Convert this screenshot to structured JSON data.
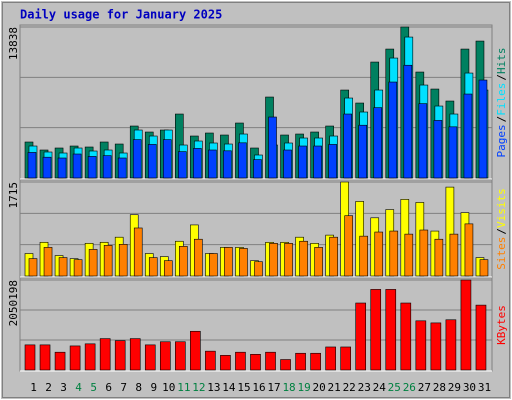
{
  "chart_data": [
    {
      "type": "bar",
      "title": "Daily usage for January 2025",
      "ylim": [
        0,
        13838
      ],
      "yticks": [
        13838
      ],
      "legend_separator": "/",
      "series": [
        {
          "name": "Hits",
          "color": "#008060",
          "values": [
            3298,
            2565,
            2748,
            2931,
            2840,
            3298,
            3114,
            4763,
            4214,
            4397,
            5862,
            3847,
            4122,
            3939,
            5038,
            2748,
            7420,
            3939,
            4030,
            4214,
            4763,
            8061,
            6870,
            10626,
            11816,
            13838,
            9710,
            8152,
            7053,
            11816,
            12549
          ]
        },
        {
          "name": "Files",
          "color": "#00e0ff",
          "values": [
            2931,
            2382,
            2290,
            2748,
            2473,
            2565,
            2290,
            4397,
            3847,
            4397,
            3023,
            3389,
            3206,
            3114,
            4030,
            2107,
            3023,
            3206,
            3664,
            3664,
            3847,
            7328,
            6046,
            8061,
            10992,
            12916,
            8519,
            6595,
            5862,
            9618,
            8061
          ]
        },
        {
          "name": "Pages",
          "color": "#0040ff",
          "values": [
            2345,
            1906,
            1832,
            2198,
            1978,
            2052,
            1832,
            3518,
            3078,
            3518,
            2418,
            2711,
            2565,
            2491,
            3224,
            1686,
            5588,
            2565,
            2931,
            2931,
            3078,
            5862,
            4837,
            6449,
            8794,
            10333,
            6815,
            5276,
            4690,
            7694,
            8977
          ]
        }
      ]
    },
    {
      "type": "bar",
      "ylim": [
        0,
        1715
      ],
      "yticks": [
        1715
      ],
      "legend_separator": "/",
      "series": [
        {
          "name": "Visits",
          "color": "#ffff00",
          "values": [
            410,
            615,
            373,
            317,
            596,
            615,
            708,
            1118,
            410,
            354,
            634,
            932,
            410,
            522,
            522,
            280,
            615,
            615,
            708,
            596,
            746,
            1715,
            1361,
            1062,
            1212,
            1398,
            1342,
            820,
            1622,
            1156,
            336
          ]
        },
        {
          "name": "Sites",
          "color": "#ff8000",
          "values": [
            317,
            522,
            336,
            298,
            485,
            559,
            578,
            876,
            336,
            280,
            541,
            671,
            410,
            522,
            503,
            261,
            596,
            596,
            634,
            522,
            708,
            1100,
            727,
            802,
            820,
            764,
            839,
            671,
            764,
            951,
            298
          ]
        }
      ]
    },
    {
      "type": "bar",
      "ylim": [
        0,
        2050198
      ],
      "yticks": [
        2050198
      ],
      "categories": [
        "1",
        "2",
        "3",
        "4",
        "5",
        "6",
        "7",
        "8",
        "9",
        "10",
        "11",
        "12",
        "13",
        "14",
        "15",
        "16",
        "17",
        "18",
        "19",
        "20",
        "21",
        "22",
        "23",
        "24",
        "25",
        "26",
        "27",
        "28",
        "29",
        "30",
        "31"
      ],
      "category_colors": [
        "#000",
        "#000",
        "#000",
        "#008040",
        "#008040",
        "#000",
        "#000",
        "#000",
        "#000",
        "#000",
        "#008040",
        "#008040",
        "#000",
        "#000",
        "#000",
        "#000",
        "#000",
        "#008040",
        "#008040",
        "#000",
        "#000",
        "#000",
        "#000",
        "#000",
        "#008040",
        "#008040",
        "#000",
        "#000",
        "#000",
        "#000",
        "#000"
      ],
      "series": [
        {
          "name": "KBytes",
          "color": "#ff0000",
          "values": [
            572160,
            572160,
            405280,
            548320,
            596000,
            715200,
            667520,
            715200,
            572160,
            643680,
            643680,
            882080,
            429120,
            333760,
            405280,
            357600,
            405280,
            238400,
            381440,
            381440,
            524480,
            524480,
            1525760,
            1835680,
            1835680,
            1525760,
            1120480,
            1072800,
            1144320,
            2050198,
            1478080
          ]
        }
      ]
    }
  ]
}
